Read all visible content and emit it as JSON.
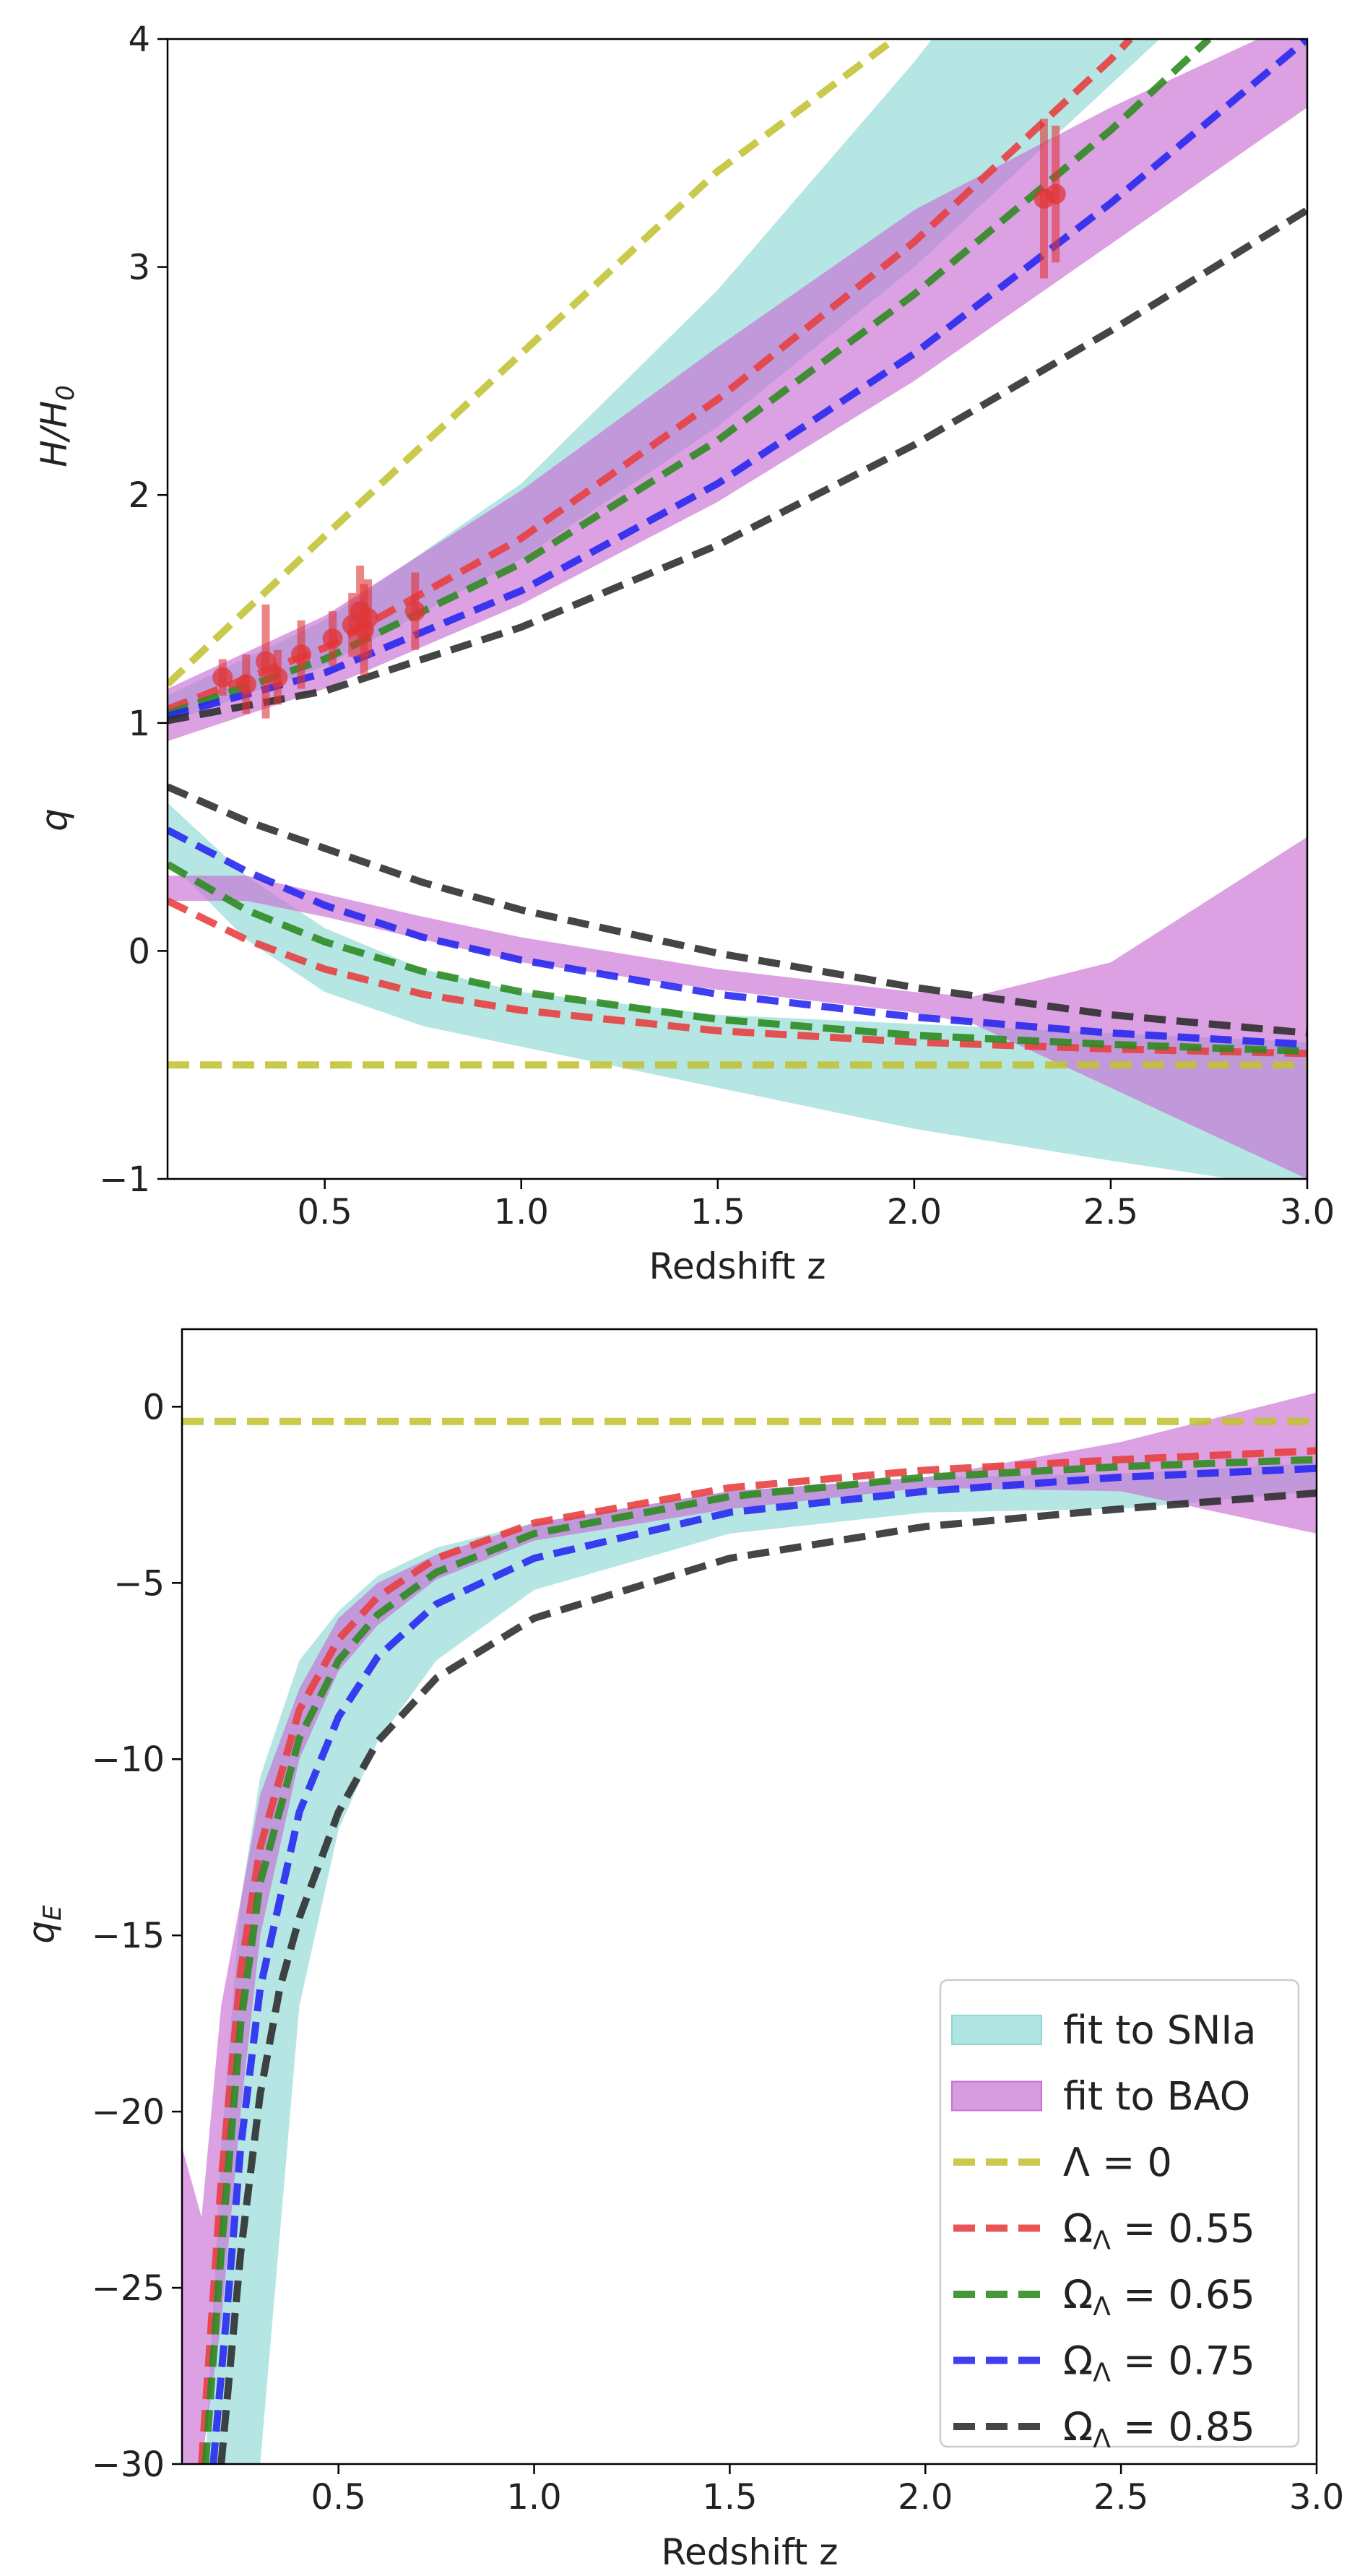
{
  "colors": {
    "sn_band": "#8fd8d6",
    "bao_band": "#c76fd3",
    "lambda0": "#c2c233",
    "om055": "#e83c3c",
    "om065": "#2a8a1e",
    "om075": "#2424f0",
    "om085": "#2b2b2b",
    "points": "#e03535"
  },
  "chart_data": [
    {
      "id": "top",
      "type": "line",
      "xlabel": "Redshift z",
      "xlim": [
        0.1,
        3.0
      ],
      "xticks": [
        {
          "v": 0.5,
          "label": "0.5"
        },
        {
          "v": 1.0,
          "label": "1.0"
        },
        {
          "v": 1.5,
          "label": "1.5"
        },
        {
          "v": 2.0,
          "label": "2.0"
        },
        {
          "v": 2.5,
          "label": "2.5"
        },
        {
          "v": 3.0,
          "label": "3.0"
        }
      ],
      "yticks": [
        {
          "v": -1,
          "label": "−1"
        },
        {
          "v": 0,
          "label": "0"
        },
        {
          "v": 1,
          "label": "1"
        },
        {
          "v": 2,
          "label": "2"
        },
        {
          "v": 3,
          "label": "3"
        },
        {
          "v": 4,
          "label": "4"
        }
      ],
      "ylim": [
        -1,
        4
      ],
      "ylabel_H": "H/H",
      "ylabel_H_sub": "0",
      "ylabel_q": "q",
      "bands": [
        {
          "name": "sn_H",
          "color_key": "sn_band",
          "x": [
            0.1,
            0.5,
            1.0,
            1.5,
            2.0,
            2.5,
            3.0
          ],
          "lower": [
            1.0,
            1.25,
            1.72,
            2.3,
            3.0,
            3.8,
            4.6
          ],
          "upper": [
            1.12,
            1.45,
            2.05,
            2.9,
            3.9,
            5.0,
            6.2
          ]
        },
        {
          "name": "bao_H",
          "color_key": "bao_band",
          "x": [
            0.1,
            0.5,
            1.0,
            1.5,
            2.0,
            2.5,
            3.0
          ],
          "lower": [
            0.92,
            1.15,
            1.52,
            1.97,
            2.5,
            3.1,
            3.7
          ],
          "upper": [
            1.15,
            1.47,
            2.02,
            2.65,
            3.25,
            3.7,
            4.1
          ]
        },
        {
          "name": "sn_q",
          "color_key": "sn_band",
          "x": [
            0.1,
            0.3,
            0.5,
            0.75,
            1.0,
            1.5,
            2.0,
            2.5,
            3.0
          ],
          "lower": [
            0.4,
            0.05,
            -0.18,
            -0.33,
            -0.42,
            -0.6,
            -0.78,
            -0.92,
            -1.05
          ],
          "upper": [
            0.65,
            0.33,
            0.1,
            -0.08,
            -0.18,
            -0.28,
            -0.32,
            -0.36,
            -0.4
          ]
        },
        {
          "name": "bao_q",
          "color_key": "bao_band",
          "x": [
            0.1,
            0.3,
            0.5,
            0.75,
            1.0,
            1.5,
            2.0,
            2.15,
            2.5,
            3.0
          ],
          "lower": [
            0.22,
            0.22,
            0.15,
            0.05,
            -0.05,
            -0.17,
            -0.27,
            -0.32,
            -0.6,
            -1.0
          ],
          "upper": [
            0.33,
            0.33,
            0.25,
            0.15,
            0.06,
            -0.08,
            -0.18,
            -0.2,
            -0.05,
            0.5
          ]
        }
      ],
      "series": [
        {
          "name": "Λ = 0 (H)",
          "color_key": "lambda0",
          "x": [
            0.1,
            0.5,
            1.0,
            1.5,
            1.95
          ],
          "y": [
            1.17,
            1.82,
            2.62,
            3.42,
            4.0
          ]
        },
        {
          "name": "Ω_Λ = 0.55 (H)",
          "color_key": "om055",
          "x": [
            0.1,
            0.5,
            1.0,
            1.5,
            2.0,
            2.5,
            2.55
          ],
          "y": [
            1.06,
            1.33,
            1.81,
            2.42,
            3.11,
            3.91,
            4.0
          ]
        },
        {
          "name": "Ω_Λ = 0.65 (H)",
          "color_key": "om065",
          "x": [
            0.1,
            0.5,
            1.0,
            1.5,
            2.0,
            2.5,
            2.75
          ],
          "y": [
            1.04,
            1.28,
            1.7,
            2.24,
            2.88,
            3.6,
            4.0
          ]
        },
        {
          "name": "Ω_Λ = 0.75 (H)",
          "color_key": "om075",
          "x": [
            0.1,
            0.5,
            1.0,
            1.5,
            2.0,
            2.5,
            3.0
          ],
          "y": [
            1.03,
            1.22,
            1.58,
            2.05,
            2.62,
            3.28,
            4.0
          ]
        },
        {
          "name": "Ω_Λ = 0.85 (H)",
          "color_key": "om085",
          "x": [
            0.1,
            0.5,
            1.0,
            1.5,
            2.0,
            2.5,
            3.0
          ],
          "y": [
            1.01,
            1.14,
            1.42,
            1.78,
            2.22,
            2.72,
            3.25
          ]
        },
        {
          "name": "Λ = 0 (q)",
          "color_key": "lambda0",
          "x": [
            0.1,
            3.0
          ],
          "y": [
            -0.5,
            -0.5
          ]
        },
        {
          "name": "Ω_Λ = 0.55 (q)",
          "color_key": "om055",
          "x": [
            0.1,
            0.3,
            0.5,
            0.75,
            1.0,
            1.5,
            2.0,
            2.5,
            3.0
          ],
          "y": [
            0.22,
            0.05,
            -0.08,
            -0.19,
            -0.26,
            -0.35,
            -0.4,
            -0.43,
            -0.45
          ]
        },
        {
          "name": "Ω_Λ = 0.65 (q)",
          "color_key": "om065",
          "x": [
            0.1,
            0.3,
            0.5,
            0.75,
            1.0,
            1.5,
            2.0,
            2.5,
            3.0
          ],
          "y": [
            0.38,
            0.18,
            0.04,
            -0.09,
            -0.18,
            -0.3,
            -0.37,
            -0.41,
            -0.44
          ]
        },
        {
          "name": "Ω_Λ = 0.75 (q)",
          "color_key": "om075",
          "x": [
            0.1,
            0.3,
            0.5,
            0.75,
            1.0,
            1.5,
            2.0,
            2.5,
            3.0
          ],
          "y": [
            0.53,
            0.35,
            0.2,
            0.06,
            -0.04,
            -0.19,
            -0.29,
            -0.36,
            -0.41
          ]
        },
        {
          "name": "Ω_Λ = 0.85 (q)",
          "color_key": "om085",
          "x": [
            0.1,
            0.3,
            0.5,
            0.75,
            1.0,
            1.5,
            2.0,
            2.5,
            3.0
          ],
          "y": [
            0.72,
            0.57,
            0.45,
            0.3,
            0.18,
            -0.01,
            -0.16,
            -0.28,
            -0.36
          ]
        }
      ],
      "data_points": {
        "name": "H(z) data",
        "color_key": "points",
        "x": [
          0.24,
          0.3,
          0.35,
          0.38,
          0.44,
          0.52,
          0.57,
          0.59,
          0.6,
          0.61,
          0.73,
          2.33,
          2.36
        ],
        "y": [
          1.2,
          1.17,
          1.27,
          1.2,
          1.3,
          1.37,
          1.43,
          1.49,
          1.41,
          1.46,
          1.49,
          3.3,
          3.32
        ],
        "err": [
          0.08,
          0.13,
          0.25,
          0.12,
          0.15,
          0.12,
          0.14,
          0.2,
          0.2,
          0.17,
          0.17,
          0.35,
          0.3
        ]
      }
    },
    {
      "id": "bottom",
      "type": "line",
      "xlabel": "Redshift z",
      "xlim": [
        0.1,
        3.0
      ],
      "ylim": [
        -30,
        2.2
      ],
      "ylabel": "q",
      "ylabel_sub": "E",
      "xticks": [
        {
          "v": 0.5,
          "label": "0.5"
        },
        {
          "v": 1.0,
          "label": "1.0"
        },
        {
          "v": 1.5,
          "label": "1.5"
        },
        {
          "v": 2.0,
          "label": "2.0"
        },
        {
          "v": 2.5,
          "label": "2.5"
        },
        {
          "v": 3.0,
          "label": "3.0"
        }
      ],
      "yticks": [
        {
          "v": 0,
          "label": "0"
        },
        {
          "v": -5,
          "label": "−5"
        },
        {
          "v": -10,
          "label": "−10"
        },
        {
          "v": -15,
          "label": "−15"
        },
        {
          "v": -20,
          "label": "−20"
        },
        {
          "v": -25,
          "label": "−25"
        },
        {
          "v": -30,
          "label": "−30"
        }
      ],
      "bands": [
        {
          "name": "sn_qE",
          "color_key": "sn_band",
          "x": [
            0.16,
            0.2,
            0.25,
            0.3,
            0.4,
            0.5,
            0.6,
            0.75,
            1.0,
            1.5,
            2.0,
            2.5,
            3.0
          ],
          "lower": [
            -30,
            -30,
            -30,
            -30,
            -17,
            -12,
            -9.5,
            -7.2,
            -5.2,
            -3.6,
            -3.0,
            -2.9,
            -2.4
          ],
          "upper": [
            -30,
            -21,
            -14,
            -10.5,
            -7.2,
            -5.8,
            -4.8,
            -4.0,
            -3.3,
            -2.4,
            -2.0,
            -1.9,
            -1.6
          ]
        },
        {
          "name": "bao_qE",
          "color_key": "bao_band",
          "x": [
            0.1,
            0.15,
            0.2,
            0.25,
            0.3,
            0.4,
            0.5,
            0.6,
            0.75,
            1.0,
            1.5,
            2.0,
            2.5,
            3.0
          ],
          "lower": [
            -30,
            -30,
            -26,
            -20,
            -15,
            -10,
            -7.5,
            -6.2,
            -4.9,
            -3.8,
            -2.9,
            -2.3,
            -2.4,
            -3.6
          ],
          "upper": [
            -21,
            -23,
            -17,
            -14,
            -11,
            -8,
            -6,
            -5,
            -4.2,
            -3.3,
            -2.4,
            -2.0,
            -1.0,
            0.4
          ]
        }
      ],
      "series": [
        {
          "name": "Λ = 0",
          "color_key": "lambda0",
          "x": [
            0.1,
            3.0
          ],
          "y": [
            -0.42,
            -0.42
          ]
        },
        {
          "name": "Ω_Λ = 0.55",
          "color_key": "om055",
          "x": [
            0.15,
            0.2,
            0.25,
            0.3,
            0.4,
            0.5,
            0.6,
            0.75,
            1.0,
            1.5,
            2.0,
            2.5,
            3.0
          ],
          "y": [
            -30,
            -22,
            -16,
            -12.5,
            -8.6,
            -6.6,
            -5.4,
            -4.3,
            -3.3,
            -2.3,
            -1.8,
            -1.5,
            -1.25
          ]
        },
        {
          "name": "Ω_Λ = 0.65",
          "color_key": "om065",
          "x": [
            0.16,
            0.2,
            0.25,
            0.3,
            0.4,
            0.5,
            0.6,
            0.75,
            1.0,
            1.5,
            2.0,
            2.5,
            3.0
          ],
          "y": [
            -30,
            -24,
            -17.5,
            -13.5,
            -9.4,
            -7.2,
            -5.9,
            -4.7,
            -3.6,
            -2.55,
            -2.0,
            -1.7,
            -1.5
          ]
        },
        {
          "name": "Ω_Λ = 0.75",
          "color_key": "om075",
          "x": [
            0.18,
            0.22,
            0.25,
            0.3,
            0.4,
            0.5,
            0.6,
            0.75,
            1.0,
            1.5,
            2.0,
            2.5,
            3.0
          ],
          "y": [
            -30,
            -25,
            -21,
            -16.5,
            -11.5,
            -8.8,
            -7.1,
            -5.6,
            -4.3,
            -3.0,
            -2.4,
            -2.0,
            -1.75
          ]
        },
        {
          "name": "Ω_Λ = 0.85",
          "color_key": "om085",
          "x": [
            0.2,
            0.25,
            0.3,
            0.35,
            0.4,
            0.5,
            0.6,
            0.75,
            1.0,
            1.5,
            2.0,
            2.5,
            3.0
          ],
          "y": [
            -30,
            -24,
            -19.5,
            -16.5,
            -14.5,
            -11.5,
            -9.5,
            -7.7,
            -6.0,
            -4.3,
            -3.4,
            -2.9,
            -2.45
          ]
        }
      ],
      "legend": {
        "location": "lower-right",
        "entries": [
          {
            "label": "fit to SNIa",
            "kind": "patch",
            "color_key": "sn_band"
          },
          {
            "label": "fit to BAO",
            "kind": "patch",
            "color_key": "bao_band"
          },
          {
            "label": "Λ = 0",
            "kind": "line",
            "color_key": "lambda0"
          },
          {
            "label": "Ω",
            "sub": "Λ",
            "label_rest": " = 0.55",
            "kind": "line",
            "color_key": "om055"
          },
          {
            "label": "Ω",
            "sub": "Λ",
            "label_rest": " = 0.65",
            "kind": "line",
            "color_key": "om065"
          },
          {
            "label": "Ω",
            "sub": "Λ",
            "label_rest": " = 0.75",
            "kind": "line",
            "color_key": "om075"
          },
          {
            "label": "Ω",
            "sub": "Λ",
            "label_rest": " = 0.85",
            "kind": "line",
            "color_key": "om085"
          }
        ]
      }
    }
  ]
}
